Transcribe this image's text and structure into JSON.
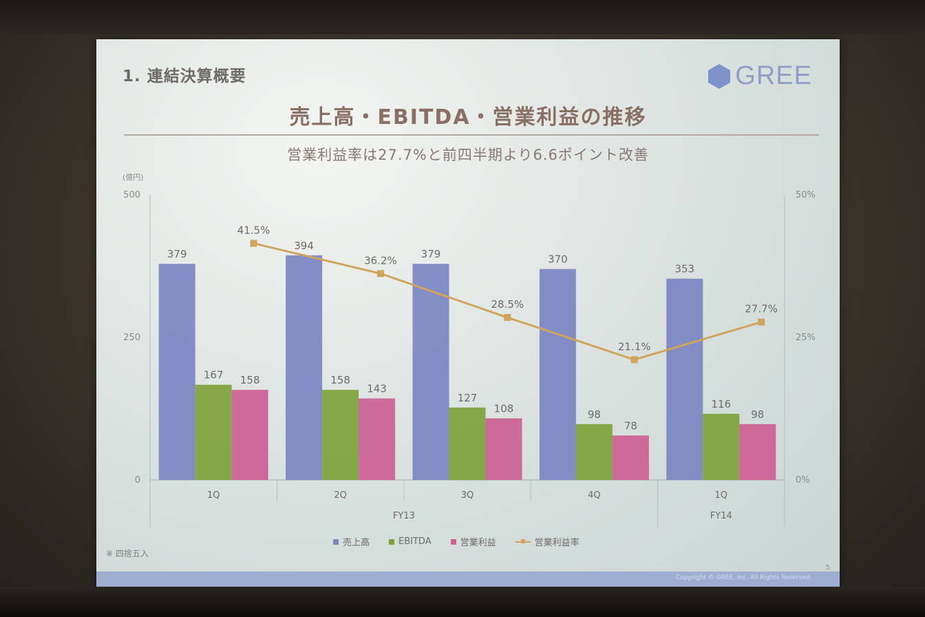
{
  "slide": {
    "section_title": "1. 連結決算概要",
    "logo_text": "GREE",
    "main_title": "売上高・EBITDA・営業利益の推移",
    "subtitle": "営業利益率は27.7%と前四半期より6.6ポイント改善",
    "footnote": "※ 四捨五入",
    "page_number": "5",
    "copyright": "Copyright © GREE, Inc. All Rights Reserved."
  },
  "colors": {
    "revenue": "#7b86c2",
    "ebitda": "#7ea33a",
    "operating_income": "#cc5f93",
    "margin": "#d1a45c",
    "logo": "#7f92c9"
  },
  "chart_data": {
    "type": "bar",
    "y_unit_label": "(億円)",
    "categories": [
      "1Q",
      "2Q",
      "3Q",
      "4Q",
      "1Q"
    ],
    "groups": [
      {
        "label": "FY13",
        "span": [
          0,
          3
        ]
      },
      {
        "label": "FY14",
        "span": [
          4,
          4
        ]
      }
    ],
    "series": [
      {
        "name": "売上高",
        "type": "bar",
        "axis": "left",
        "values": [
          379,
          394,
          379,
          370,
          353
        ]
      },
      {
        "name": "EBITDA",
        "type": "bar",
        "axis": "left",
        "values": [
          167,
          158,
          127,
          98,
          116
        ]
      },
      {
        "name": "営業利益",
        "type": "bar",
        "axis": "left",
        "values": [
          158,
          143,
          108,
          78,
          98
        ]
      },
      {
        "name": "営業利益率",
        "type": "line",
        "axis": "right",
        "values": [
          41.5,
          36.2,
          28.5,
          21.1,
          27.7
        ],
        "labels": [
          "41.5%",
          "36.2%",
          "28.5%",
          "21.1%",
          "27.7%"
        ]
      }
    ],
    "left_axis": {
      "ylim": [
        0,
        500
      ],
      "ticks": [
        "0",
        "250",
        "500"
      ]
    },
    "right_axis": {
      "ylim": [
        0,
        50
      ],
      "ticks": [
        "0%",
        "25%",
        "50%"
      ]
    },
    "legend_placement": "bottom",
    "grid": false
  }
}
